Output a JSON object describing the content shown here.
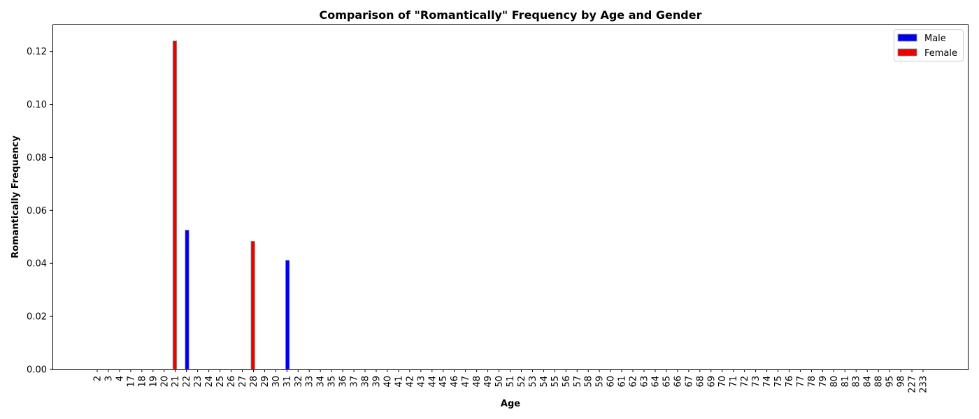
{
  "chart_data": {
    "type": "bar",
    "title": "Comparison of \"Romantically\" Frequency by Age and Gender",
    "xlabel": "Age",
    "ylabel": "Romantically Frequency",
    "ylim": [
      0,
      0.1302
    ],
    "yticks": [
      "0.00",
      "0.02",
      "0.04",
      "0.06",
      "0.08",
      "0.10",
      "0.12"
    ],
    "categories": [
      "2",
      "3",
      "4",
      "17",
      "18",
      "19",
      "20",
      "21",
      "22",
      "23",
      "24",
      "25",
      "26",
      "27",
      "28",
      "29",
      "30",
      "31",
      "32",
      "33",
      "34",
      "35",
      "36",
      "37",
      "38",
      "39",
      "40",
      "41",
      "42",
      "43",
      "44",
      "45",
      "46",
      "47",
      "48",
      "49",
      "50",
      "51",
      "52",
      "53",
      "54",
      "55",
      "56",
      "57",
      "58",
      "59",
      "60",
      "61",
      "62",
      "63",
      "64",
      "65",
      "66",
      "67",
      "68",
      "69",
      "70",
      "71",
      "72",
      "73",
      "74",
      "75",
      "76",
      "77",
      "78",
      "79",
      "80",
      "81",
      "83",
      "84",
      "88",
      "95",
      "98",
      "227",
      "233"
    ],
    "series": [
      {
        "name": "Male",
        "color": "#0000ee",
        "values": [
          0,
          0,
          0,
          0,
          0,
          0,
          0,
          0,
          0.0526,
          0,
          0,
          0,
          0,
          0,
          0,
          0,
          0,
          0.0412,
          0,
          0,
          0,
          0,
          0,
          0,
          0,
          0,
          0,
          0,
          0,
          0,
          0,
          0,
          0,
          0,
          0,
          0,
          0,
          0,
          0,
          0,
          0,
          0,
          0,
          0,
          0,
          0,
          0,
          0,
          0,
          0,
          0,
          0,
          0,
          0,
          0,
          0,
          0,
          0,
          0,
          0,
          0,
          0,
          0,
          0,
          0,
          0,
          0,
          0,
          0,
          0,
          0,
          0,
          0,
          0,
          0
        ]
      },
      {
        "name": "Female",
        "color": "#ee0000",
        "values": [
          0,
          0,
          0,
          0,
          0,
          0,
          0,
          0.124,
          0,
          0,
          0,
          0,
          0,
          0,
          0.0484,
          0,
          0,
          0,
          0,
          0,
          0,
          0,
          0,
          0,
          0,
          0,
          0,
          0,
          0,
          0,
          0,
          0,
          0,
          0,
          0,
          0,
          0,
          0,
          0,
          0,
          0,
          0,
          0,
          0,
          0,
          0,
          0,
          0,
          0,
          0,
          0,
          0,
          0,
          0,
          0,
          0,
          0,
          0,
          0,
          0,
          0,
          0,
          0,
          0,
          0,
          0,
          0,
          0,
          0,
          0,
          0,
          0,
          0,
          0,
          0
        ]
      }
    ],
    "legend": "top-right",
    "grid": false
  }
}
